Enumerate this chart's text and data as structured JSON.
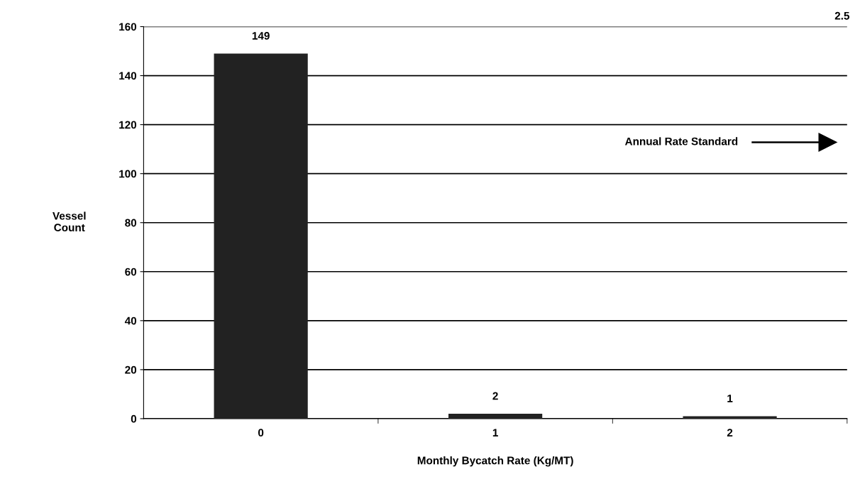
{
  "chart_data": {
    "type": "bar",
    "xlabel": "Monthly Bycatch Rate (Kg/MT)",
    "ylabel": "Vessel\nCount",
    "categories": [
      "0",
      "1",
      "2"
    ],
    "values": [
      149,
      2,
      1
    ],
    "color": "#222222",
    "data_labels": true,
    "ylim": [
      0,
      160
    ],
    "yticks": [
      0,
      20,
      40,
      60,
      80,
      100,
      120,
      140,
      160
    ],
    "grid": "y",
    "annotations": [
      "2.5",
      "Annual Rate Standard"
    ]
  }
}
